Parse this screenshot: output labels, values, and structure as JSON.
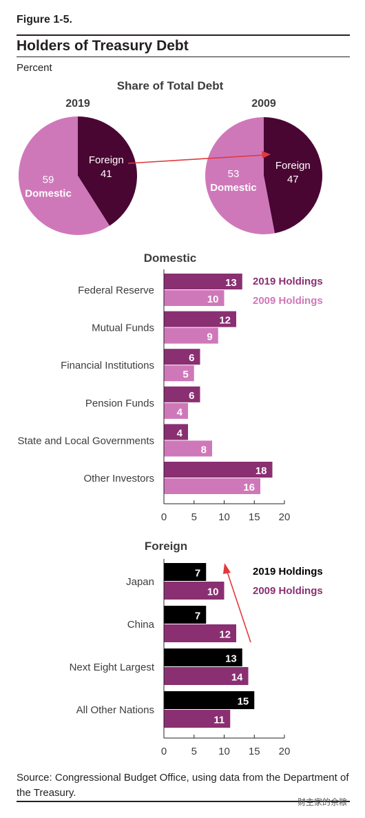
{
  "figure_label": "Figure 1-5.",
  "title": "Holders of Treasury Debt",
  "units": "Percent",
  "source": "Source: Congressional Budget Office, using data from the Department of the Treasury.",
  "watermark": "财主家的余粮",
  "colors": {
    "dark_purple": "#4a0633",
    "mid_purple": "#8a2f72",
    "light_pink": "#cf78b9",
    "black": "#000000",
    "arrow_red": "#e0393e"
  },
  "chart_data": [
    {
      "type": "pie",
      "title": "Share of Total Debt",
      "pies": [
        {
          "label": "2019",
          "slices": [
            {
              "name": "Foreign",
              "value": 41
            },
            {
              "name": "Domestic",
              "value": 59
            }
          ]
        },
        {
          "label": "2009",
          "slices": [
            {
              "name": "Foreign",
              "value": 47
            },
            {
              "name": "Domestic",
              "value": 53
            }
          ]
        }
      ]
    },
    {
      "type": "bar",
      "orientation": "horizontal",
      "title": "Domestic",
      "categories": [
        "Federal Reserve",
        "Mutual Funds",
        "Financial Institutions",
        "Pension Funds",
        "State and Local Governments",
        "Other Investors"
      ],
      "series": [
        {
          "name": "2019 Holdings",
          "values": [
            13,
            12,
            6,
            6,
            4,
            18
          ]
        },
        {
          "name": "2009 Holdings",
          "values": [
            10,
            9,
            5,
            4,
            8,
            16
          ]
        }
      ],
      "xlim": [
        0,
        20
      ],
      "xticks": [
        0,
        5,
        10,
        15,
        20
      ],
      "legend_position": "top-right",
      "grid": false
    },
    {
      "type": "bar",
      "orientation": "horizontal",
      "title": "Foreign",
      "categories": [
        "Japan",
        "China",
        "Next Eight Largest",
        "All Other Nations"
      ],
      "series": [
        {
          "name": "2019 Holdings",
          "values": [
            7,
            7,
            13,
            15
          ]
        },
        {
          "name": "2009 Holdings",
          "values": [
            10,
            12,
            14,
            11
          ]
        }
      ],
      "xlim": [
        0,
        20
      ],
      "xticks": [
        0,
        5,
        10,
        15,
        20
      ],
      "legend_position": "top-right",
      "grid": false
    }
  ]
}
